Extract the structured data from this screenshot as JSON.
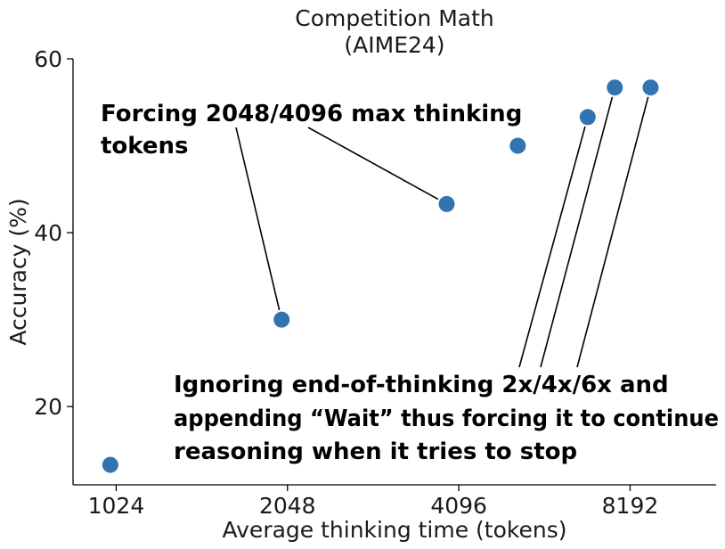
{
  "chart_data": {
    "type": "scatter",
    "title_line1": "Competition Math",
    "title_line2": "(AIME24)",
    "xlabel": "Average thinking time (tokens)",
    "ylabel": "Accuracy (%)",
    "x_scale": "log2",
    "xlim": [
      860,
      11600
    ],
    "ylim": [
      11,
      60
    ],
    "x_ticks": [
      {
        "value": 1024,
        "label": "1024"
      },
      {
        "value": 2048,
        "label": "2048"
      },
      {
        "value": 4096,
        "label": "4096"
      },
      {
        "value": 8192,
        "label": "8192"
      }
    ],
    "y_ticks": [
      {
        "value": 20,
        "label": "20"
      },
      {
        "value": 40,
        "label": "40"
      },
      {
        "value": 60,
        "label": "60"
      }
    ],
    "grid": false,
    "marker_color": "#3274b0",
    "points": [
      {
        "x": 1000,
        "y": 13.3
      },
      {
        "x": 2000,
        "y": 30.0
      },
      {
        "x": 3900,
        "y": 43.3
      },
      {
        "x": 5200,
        "y": 50.0
      },
      {
        "x": 6900,
        "y": 53.3
      },
      {
        "x": 7700,
        "y": 56.7
      },
      {
        "x": 8900,
        "y": 56.7
      }
    ],
    "annotations": [
      {
        "lines": [
          "Forcing 2048/4096 max thinking",
          "tokens"
        ],
        "targets": [
          1,
          2
        ]
      },
      {
        "lines": [
          "Ignoring end-of-thinking 2x/4x/6x and",
          "appending “Wait” thus forcing it to continue",
          "reasoning when it tries to stop"
        ],
        "targets": [
          4,
          5,
          6
        ]
      }
    ]
  }
}
